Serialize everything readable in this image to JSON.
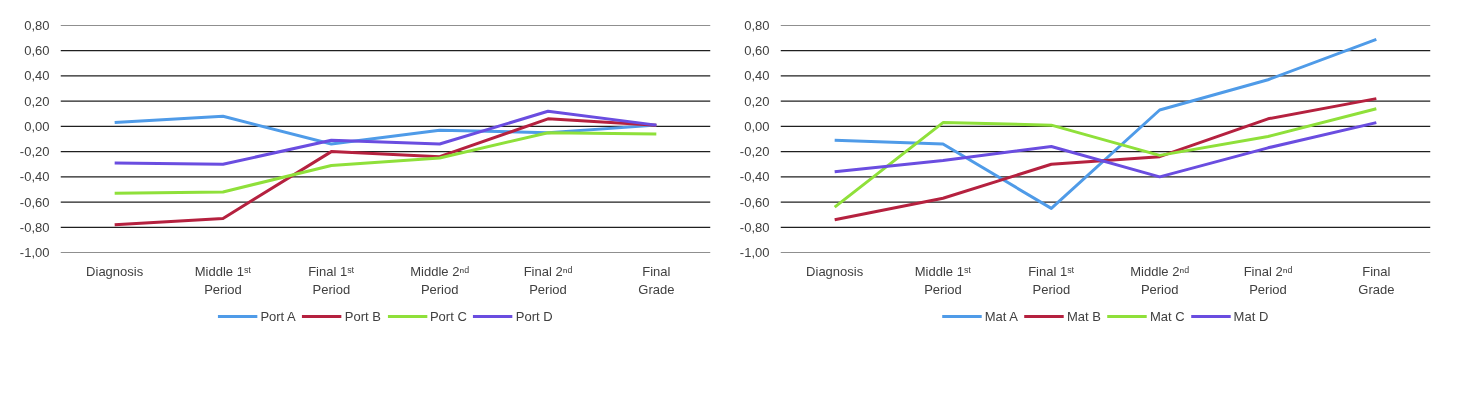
{
  "chart_data": [
    {
      "type": "line",
      "categories": [
        "Diagnosis",
        "Middle 1ˢᵗ Period",
        "Final 1ˢᵗ Period",
        "Middle 2ⁿᵈ Period",
        "Final 2ⁿᵈ Period",
        "Final Grade"
      ],
      "series": [
        {
          "name": "Port A",
          "color": "#4f9be8",
          "values": [
            0.03,
            0.08,
            -0.14,
            -0.03,
            -0.05,
            0.01
          ]
        },
        {
          "name": "Port B",
          "color": "#b5213f",
          "values": [
            -0.78,
            -0.73,
            -0.2,
            -0.24,
            0.06,
            0.01
          ]
        },
        {
          "name": "Port C",
          "color": "#8fe03a",
          "values": [
            -0.53,
            -0.52,
            -0.31,
            -0.25,
            -0.05,
            -0.06
          ]
        },
        {
          "name": "Port D",
          "color": "#6a4de0",
          "values": [
            -0.29,
            -0.3,
            -0.11,
            -0.14,
            0.12,
            0.01
          ]
        }
      ],
      "ylim": [
        -1.0,
        0.8
      ],
      "yticks": [
        {
          "value": -1.0,
          "label": "-1,00"
        },
        {
          "value": -0.8,
          "label": "-0,80"
        },
        {
          "value": -0.6,
          "label": "-0,60"
        },
        {
          "value": -0.4,
          "label": "-0,40"
        },
        {
          "value": -0.2,
          "label": "-0,20"
        },
        {
          "value": 0,
          "label": "0,00"
        },
        {
          "value": 0.2,
          "label": "0,20"
        },
        {
          "value": 0.4,
          "label": "0,40"
        },
        {
          "value": 0.6,
          "label": "0,60"
        },
        {
          "value": 0.8,
          "label": "0,80"
        }
      ],
      "grid": "y",
      "legend": "bottom",
      "marker": "none",
      "line_style": "solid"
    },
    {
      "type": "line",
      "categories": [
        "Diagnosis",
        "Middle 1ˢᵗ Period",
        "Final 1ˢᵗ Period",
        "Middle 2ⁿᵈ Period",
        "Final 2ⁿᵈ Period",
        "Final Grade"
      ],
      "series": [
        {
          "name": "Mat A",
          "color": "#4f9be8",
          "values": [
            -0.11,
            -0.14,
            -0.65,
            0.13,
            0.37,
            0.69
          ]
        },
        {
          "name": "Mat B",
          "color": "#b5213f",
          "values": [
            -0.74,
            -0.57,
            -0.3,
            -0.24,
            0.06,
            0.22
          ]
        },
        {
          "name": "Mat C",
          "color": "#8fe03a",
          "values": [
            -0.64,
            0.03,
            0.01,
            -0.23,
            -0.08,
            0.14
          ]
        },
        {
          "name": "Mat D",
          "color": "#6a4de0",
          "values": [
            -0.36,
            -0.27,
            -0.16,
            -0.4,
            -0.17,
            0.03
          ]
        }
      ],
      "ylim": [
        -1.0,
        0.8
      ],
      "yticks": [
        {
          "value": -1.0,
          "label": "-1,00"
        },
        {
          "value": -0.8,
          "label": "-0,80"
        },
        {
          "value": -0.6,
          "label": "-0,60"
        },
        {
          "value": -0.4,
          "label": "-0,40"
        },
        {
          "value": -0.2,
          "label": "-0,20"
        },
        {
          "value": 0,
          "label": "0,00"
        },
        {
          "value": 0.2,
          "label": "0,20"
        },
        {
          "value": 0.4,
          "label": "0,40"
        },
        {
          "value": 0.6,
          "label": "0,60"
        },
        {
          "value": 0.8,
          "label": "0,80"
        }
      ],
      "grid": "y",
      "legend": "bottom",
      "marker": "none",
      "line_style": "solid"
    }
  ]
}
